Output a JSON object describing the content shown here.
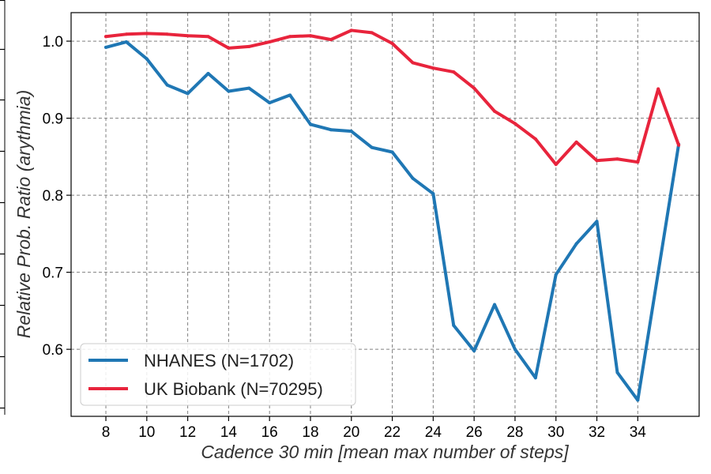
{
  "chart_data": {
    "type": "line",
    "xlabel": "Cadence 30 min [mean max number of steps]",
    "ylabel": "Relative Prob. Ratio (arythmia)",
    "xlim": [
      6.3,
      37.0
    ],
    "ylim": [
      0.513,
      1.037
    ],
    "xticks": [
      8,
      10,
      12,
      14,
      16,
      18,
      20,
      22,
      24,
      26,
      28,
      30,
      32,
      34
    ],
    "yticks": [
      0.6,
      0.7,
      0.8,
      0.9,
      1.0
    ],
    "ytick_labels": [
      "0.6",
      "0.7",
      "0.8",
      "0.9",
      "1.0"
    ],
    "grid": true,
    "legend_position": "lower-left",
    "series": [
      {
        "name": "NHANES (N=1702)",
        "color": "#1f77b4",
        "x": [
          8,
          9,
          10,
          11,
          12,
          13,
          14,
          15,
          16,
          17,
          18,
          19,
          20,
          21,
          22,
          23,
          24,
          25,
          26,
          27,
          28,
          29,
          30,
          31,
          32,
          33,
          34,
          35,
          36
        ],
        "y": [
          0.992,
          0.999,
          0.977,
          0.943,
          0.932,
          0.958,
          0.935,
          0.939,
          0.92,
          0.93,
          0.892,
          0.885,
          0.883,
          0.862,
          0.856,
          0.822,
          0.802,
          0.631,
          0.598,
          0.658,
          0.6,
          0.563,
          0.697,
          0.737,
          0.766,
          0.57,
          0.534,
          0.7,
          0.866
        ]
      },
      {
        "name": "UK Biobank (N=70295)",
        "color": "#e8243c",
        "x": [
          8,
          9,
          10,
          11,
          12,
          13,
          14,
          15,
          16,
          17,
          18,
          19,
          20,
          21,
          22,
          23,
          24,
          25,
          26,
          27,
          28,
          29,
          30,
          31,
          32,
          33,
          34,
          35,
          36
        ],
        "y": [
          1.006,
          1.009,
          1.01,
          1.009,
          1.007,
          1.006,
          0.991,
          0.993,
          0.999,
          1.006,
          1.007,
          1.002,
          1.014,
          1.011,
          0.997,
          0.972,
          0.965,
          0.96,
          0.939,
          0.909,
          0.893,
          0.873,
          0.84,
          0.869,
          0.845,
          0.847,
          0.843,
          0.938,
          0.865
        ]
      }
    ]
  }
}
